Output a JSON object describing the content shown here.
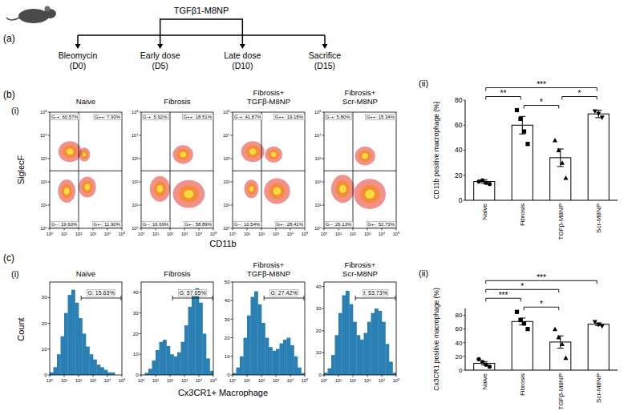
{
  "timeline": {
    "letter": "(a)",
    "drug": "TGFβ1-M8NP",
    "dose_events": [
      1,
      2
    ],
    "events": [
      {
        "label": "Bleomycin",
        "day": 0,
        "day_label": "(D0)"
      },
      {
        "label": "Early dose",
        "day": 5,
        "day_label": "(D5)"
      },
      {
        "label": "Late dose",
        "day": 10,
        "day_label": "(D10)"
      },
      {
        "label": "Sacrifice",
        "day": 15,
        "day_label": "(D15)"
      }
    ]
  },
  "panel_b": {
    "letter": "(b)",
    "left_sub": "(i)",
    "right_sub": "(ii)",
    "xlabel": "CD11b",
    "ylabel": "SiglecF"
  },
  "panel_c": {
    "letter": "(c)",
    "left_sub": "(i)",
    "right_sub": "(ii)",
    "xlabel": "Cx3CR1+ Macrophage",
    "ylabel": "Count"
  },
  "chart_data": [
    {
      "type": "density",
      "title": "Naive",
      "log": true,
      "xlim": [
        1,
        100000
      ],
      "ylim": [
        1,
        100000
      ],
      "xticks": [
        {
          "value": 1,
          "label": "10⁰"
        },
        {
          "value": 10,
          "label": "10¹"
        },
        {
          "value": 100,
          "label": "10²"
        },
        {
          "value": 1000,
          "label": "10³"
        },
        {
          "value": 10000,
          "label": "10⁴"
        },
        {
          "value": 100000,
          "label": "10⁵"
        }
      ],
      "yticks": [
        {
          "value": 1,
          "label": "10⁰"
        },
        {
          "value": 10,
          "label": "10¹"
        },
        {
          "value": 100,
          "label": "10²"
        },
        {
          "value": 1000,
          "label": "10³"
        },
        {
          "value": 10000,
          "label": "10⁴"
        },
        {
          "value": 100000,
          "label": "10⁵"
        }
      ],
      "gate_x": 100,
      "gate_y": 300,
      "quadrant_labels": {
        "top_left": "G-+: 60.57%",
        "top_right": "G++: 7.93%",
        "bottom_left": "G--: 19.60%",
        "bottom_right": "G+-: 11.90%"
      },
      "clusters": [
        {
          "x": 25,
          "y": 2000,
          "sx": 0.8,
          "sy": 0.45
        },
        {
          "x": 15,
          "y": 40,
          "sx": 0.6,
          "sy": 0.5
        },
        {
          "x": 400,
          "y": 60,
          "sx": 0.6,
          "sy": 0.45
        },
        {
          "x": 250,
          "y": 1500,
          "sx": 0.4,
          "sy": 0.3
        }
      ]
    },
    {
      "type": "density",
      "title": "Fibrosis",
      "log": true,
      "xlim": [
        1,
        100000
      ],
      "ylim": [
        1,
        100000
      ],
      "xticks": [
        {
          "value": 1,
          "label": "10⁰"
        },
        {
          "value": 10,
          "label": "10¹"
        },
        {
          "value": 100,
          "label": "10²"
        },
        {
          "value": 1000,
          "label": "10³"
        },
        {
          "value": 10000,
          "label": "10⁴"
        },
        {
          "value": 100000,
          "label": "10⁵"
        }
      ],
      "yticks": [
        {
          "value": 1,
          "label": "10⁰"
        },
        {
          "value": 10,
          "label": "10¹"
        },
        {
          "value": 100,
          "label": "10²"
        },
        {
          "value": 1000,
          "label": "10³"
        },
        {
          "value": 10000,
          "label": "10⁴"
        },
        {
          "value": 100000,
          "label": "10⁵"
        }
      ],
      "gate_x": 100,
      "gate_y": 300,
      "quadrant_labels": {
        "top_left": "G-+: 5.92%",
        "top_right": "G++: 18.51%",
        "bottom_left": "G--: 16.69%",
        "bottom_right": "G+-: 58.89%"
      },
      "clusters": [
        {
          "x": 2000,
          "y": 30,
          "sx": 1.1,
          "sy": 0.6
        },
        {
          "x": 800,
          "y": 1500,
          "sx": 0.7,
          "sy": 0.4
        },
        {
          "x": 20,
          "y": 50,
          "sx": 0.7,
          "sy": 0.55
        }
      ]
    },
    {
      "type": "density",
      "title": "Fibrosis+ TGFβ-M8NP",
      "log": true,
      "xlim": [
        1,
        100000
      ],
      "ylim": [
        1,
        100000
      ],
      "xticks": [
        {
          "value": 1,
          "label": "10⁰"
        },
        {
          "value": 10,
          "label": "10¹"
        },
        {
          "value": 100,
          "label": "10²"
        },
        {
          "value": 1000,
          "label": "10³"
        },
        {
          "value": 10000,
          "label": "10⁴"
        },
        {
          "value": 100000,
          "label": "10⁵"
        }
      ],
      "yticks": [
        {
          "value": 1,
          "label": "10⁰"
        },
        {
          "value": 10,
          "label": "10¹"
        },
        {
          "value": 100,
          "label": "10²"
        },
        {
          "value": 1000,
          "label": "10³"
        },
        {
          "value": 10000,
          "label": "10⁴"
        },
        {
          "value": 100000,
          "label": "10⁵"
        }
      ],
      "gate_x": 100,
      "gate_y": 300,
      "quadrant_labels": {
        "top_left": "G-+: 41.87%",
        "top_right": "G++: 19.18%",
        "bottom_left": "G--: 10.54%",
        "bottom_right": "G+-: 28.41%"
      },
      "clusters": [
        {
          "x": 25,
          "y": 2000,
          "sx": 0.8,
          "sy": 0.45
        },
        {
          "x": 1200,
          "y": 40,
          "sx": 0.9,
          "sy": 0.55
        },
        {
          "x": 700,
          "y": 1500,
          "sx": 0.6,
          "sy": 0.35
        },
        {
          "x": 20,
          "y": 50,
          "sx": 0.5,
          "sy": 0.4
        }
      ]
    },
    {
      "type": "density",
      "title": "Fibrosis+ Scr-M8NP",
      "log": true,
      "xlim": [
        1,
        100000
      ],
      "ylim": [
        1,
        100000
      ],
      "xticks": [
        {
          "value": 1,
          "label": "10⁰"
        },
        {
          "value": 10,
          "label": "10¹"
        },
        {
          "value": 100,
          "label": "10²"
        },
        {
          "value": 1000,
          "label": "10³"
        },
        {
          "value": 10000,
          "label": "10⁴"
        },
        {
          "value": 100000,
          "label": "10⁵"
        }
      ],
      "yticks": [
        {
          "value": 1,
          "label": "10⁰"
        },
        {
          "value": 10,
          "label": "10¹"
        },
        {
          "value": 100,
          "label": "10²"
        },
        {
          "value": 1000,
          "label": "10³"
        },
        {
          "value": 10000,
          "label": "10⁴"
        },
        {
          "value": 100000,
          "label": "10⁵"
        }
      ],
      "gate_x": 100,
      "gate_y": 300,
      "quadrant_labels": {
        "top_left": "G-+: 5.80%",
        "top_right": "G++: 15.34%",
        "bottom_left": "G--: 26.13%",
        "bottom_right": "G+-: 52.73%"
      },
      "clusters": [
        {
          "x": 1500,
          "y": 30,
          "sx": 1.1,
          "sy": 0.65
        },
        {
          "x": 700,
          "y": 1300,
          "sx": 0.7,
          "sy": 0.4
        },
        {
          "x": 20,
          "y": 50,
          "sx": 0.8,
          "sy": 0.6
        }
      ]
    },
    {
      "type": "bar",
      "categories": [
        "Naive",
        "Fibrosis",
        "TGFβ-M8NP",
        "Scr-M8NP"
      ],
      "values": [
        15,
        60,
        34,
        69
      ],
      "errors": [
        1.5,
        7,
        7,
        3
      ],
      "points": [
        [
          15,
          16,
          14,
          13
        ],
        [
          72,
          65,
          55,
          45
        ],
        [
          48,
          40,
          30,
          18
        ],
        [
          71,
          69,
          66
        ]
      ],
      "color": "#ffffff",
      "ylabel": "CD11b positive macrophage (%)",
      "ylim": [
        0,
        80
      ],
      "yticks": [
        0,
        20,
        40,
        60,
        80
      ],
      "significance": [
        {
          "from": 1,
          "to": 2,
          "label": "*"
        },
        {
          "from": 2,
          "to": 3,
          "label": "*"
        },
        {
          "from": 0,
          "to": 1,
          "label": "**"
        },
        {
          "from": 0,
          "to": 3,
          "label": "***"
        }
      ]
    },
    {
      "type": "histogram",
      "title": "Naive",
      "log": "x",
      "xlim": [
        1,
        100000
      ],
      "ylim": [
        0,
        36
      ],
      "xticks": [
        {
          "value": 1,
          "label": "10⁰"
        },
        {
          "value": 10,
          "label": "10¹"
        },
        {
          "value": 100,
          "label": "10²"
        },
        {
          "value": 1000,
          "label": "10³"
        },
        {
          "value": 10000,
          "label": "10⁴"
        },
        {
          "value": 100000,
          "label": "10⁵"
        }
      ],
      "yticks": [
        0,
        10,
        20,
        30
      ],
      "bins": [
        1,
        1.78,
        3.16,
        5.62,
        10,
        17.8,
        31.6,
        56.2,
        100,
        178,
        316,
        562,
        1000,
        1780,
        3160,
        5620,
        10000,
        17800,
        31600,
        56200,
        100000
      ],
      "counts": [
        1,
        3,
        8,
        15,
        24,
        31,
        33,
        28,
        22,
        16,
        11,
        8,
        6,
        4,
        3,
        2,
        1,
        1,
        0,
        0
      ],
      "gate": [
        150,
        100000
      ],
      "gate_label": "G: 15.63%"
    },
    {
      "type": "histogram",
      "title": "Fibrosis",
      "log": "x",
      "xlim": [
        1,
        100000
      ],
      "ylim": [
        0,
        45
      ],
      "xticks": [
        {
          "value": 1,
          "label": "10⁰"
        },
        {
          "value": 10,
          "label": "10¹"
        },
        {
          "value": 100,
          "label": "10²"
        },
        {
          "value": 1000,
          "label": "10³"
        },
        {
          "value": 10000,
          "label": "10⁴"
        },
        {
          "value": 100000,
          "label": "10⁵"
        }
      ],
      "yticks": [
        0,
        10,
        20,
        30,
        40
      ],
      "bins": [
        1,
        1.78,
        3.16,
        5.62,
        10,
        17.8,
        31.6,
        56.2,
        100,
        178,
        316,
        562,
        1000,
        1780,
        3160,
        5620,
        10000,
        17800,
        31600,
        56200,
        100000
      ],
      "counts": [
        0,
        1,
        3,
        7,
        12,
        16,
        17,
        14,
        10,
        9,
        11,
        16,
        24,
        33,
        40,
        42,
        35,
        20,
        8,
        2
      ],
      "gate": [
        150,
        100000
      ],
      "gate_label": "G: 57.65%"
    },
    {
      "type": "histogram",
      "title": "Fibrosis+ TGFβ-M8NP",
      "log": "x",
      "xlim": [
        1,
        100000
      ],
      "ylim": [
        0,
        50
      ],
      "xticks": [
        {
          "value": 1,
          "label": "10⁰"
        },
        {
          "value": 10,
          "label": "10¹"
        },
        {
          "value": 100,
          "label": "10²"
        },
        {
          "value": 1000,
          "label": "10³"
        },
        {
          "value": 10000,
          "label": "10⁴"
        },
        {
          "value": 100000,
          "label": "10⁵"
        }
      ],
      "yticks": [
        0,
        10,
        20,
        30,
        40,
        50
      ],
      "bins": [
        1,
        1.78,
        3.16,
        5.62,
        10,
        17.8,
        31.6,
        56.2,
        100,
        178,
        316,
        562,
        1000,
        1780,
        3160,
        5620,
        10000,
        17800,
        31600,
        56200,
        100000
      ],
      "counts": [
        1,
        4,
        10,
        20,
        32,
        42,
        45,
        38,
        28,
        20,
        15,
        13,
        14,
        17,
        19,
        20,
        16,
        10,
        4,
        1
      ],
      "gate": [
        150,
        100000
      ],
      "gate_label": "G: 27.42%"
    },
    {
      "type": "histogram",
      "title": "Fibrosis+ Scr-M8NP",
      "log": "x",
      "xlim": [
        1,
        100000
      ],
      "ylim": [
        0,
        42
      ],
      "xticks": [
        {
          "value": 1,
          "label": "10⁰"
        },
        {
          "value": 10,
          "label": "10¹"
        },
        {
          "value": 100,
          "label": "10²"
        },
        {
          "value": 1000,
          "label": "10³"
        },
        {
          "value": 10000,
          "label": "10⁴"
        },
        {
          "value": 100000,
          "label": "10⁵"
        }
      ],
      "yticks": [
        0,
        10,
        20,
        30,
        40
      ],
      "bins": [
        1,
        1.78,
        3.16,
        5.62,
        10,
        17.8,
        31.6,
        56.2,
        100,
        178,
        316,
        562,
        1000,
        1780,
        3160,
        5620,
        10000,
        17800,
        31600,
        56200,
        100000
      ],
      "counts": [
        1,
        3,
        9,
        18,
        28,
        36,
        38,
        32,
        24,
        18,
        16,
        19,
        24,
        28,
        30,
        29,
        24,
        14,
        6,
        1
      ],
      "gate": [
        150,
        100000
      ],
      "gate_label": "I: 53.73%"
    },
    {
      "type": "bar",
      "categories": [
        "Naive",
        "Fibrosis",
        "TGFβ-M8NP",
        "Scr-M8NP"
      ],
      "values": [
        10,
        71,
        41,
        67
      ],
      "errors": [
        2.5,
        5,
        9,
        2
      ],
      "points": [
        [
          16,
          12,
          8,
          5
        ],
        [
          85,
          73,
          68,
          60
        ],
        [
          60,
          48,
          38,
          18
        ],
        [
          70,
          66,
          64
        ]
      ],
      "color": "#ffffff",
      "ylabel": "Cx3CR1 positive macrophage (%)",
      "ylim": [
        0,
        90
      ],
      "yticks": [
        0,
        20,
        40,
        60,
        80
      ],
      "significance": [
        {
          "from": 1,
          "to": 2,
          "label": "*"
        },
        {
          "from": 0,
          "to": 1,
          "label": "***"
        },
        {
          "from": 0,
          "to": 2,
          "label": "*"
        },
        {
          "from": 0,
          "to": 3,
          "label": "***"
        }
      ]
    }
  ]
}
